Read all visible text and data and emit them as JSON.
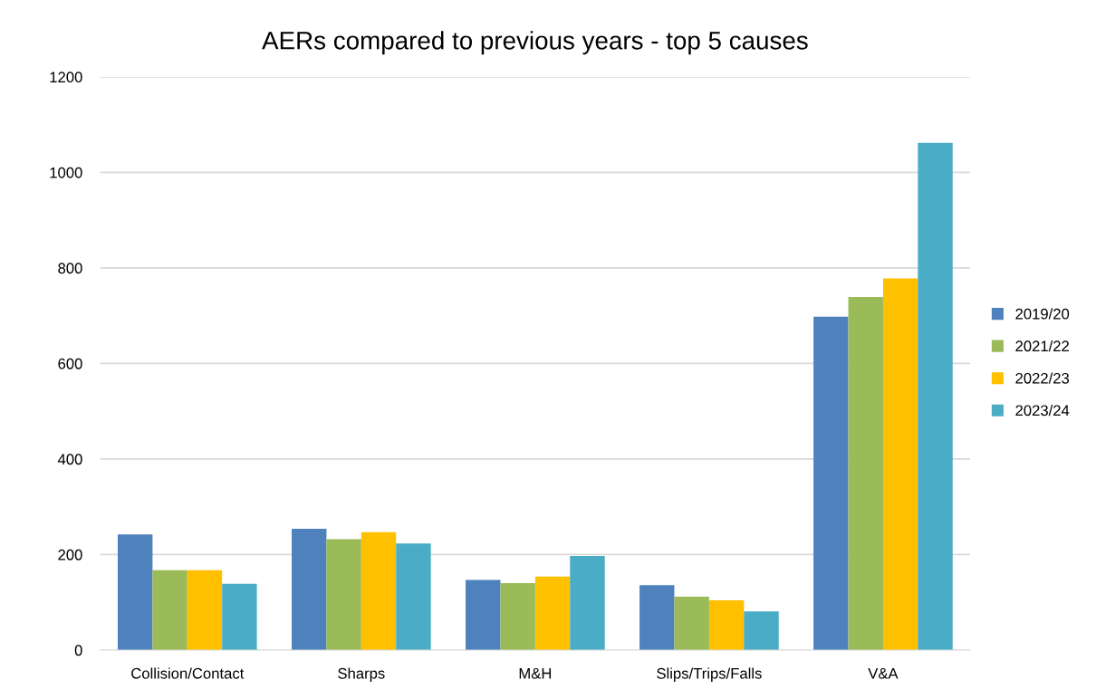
{
  "chart_data": {
    "type": "bar",
    "title": "AERs compared to previous years - top 5 causes",
    "categories": [
      "Collision/Contact",
      "Sharps",
      "M&H",
      "Slips/Trips/Falls",
      "V&A"
    ],
    "series": [
      {
        "name": "2019/20",
        "color": "#4f81bd",
        "values": [
          242,
          254,
          147,
          136,
          698
        ]
      },
      {
        "name": "2021/22",
        "color": "#9bbb59",
        "values": [
          167,
          232,
          140,
          112,
          739
        ]
      },
      {
        "name": "2022/23",
        "color": "#ffc000",
        "values": [
          167,
          247,
          154,
          104,
          778
        ]
      },
      {
        "name": "2023/24",
        "color": "#4bacc6",
        "values": [
          139,
          223,
          197,
          81,
          1062
        ]
      }
    ],
    "ylim": [
      0,
      1200
    ],
    "yticks": [
      0,
      200,
      400,
      600,
      800,
      1000,
      1200
    ],
    "grid": "y",
    "legend": "right"
  }
}
